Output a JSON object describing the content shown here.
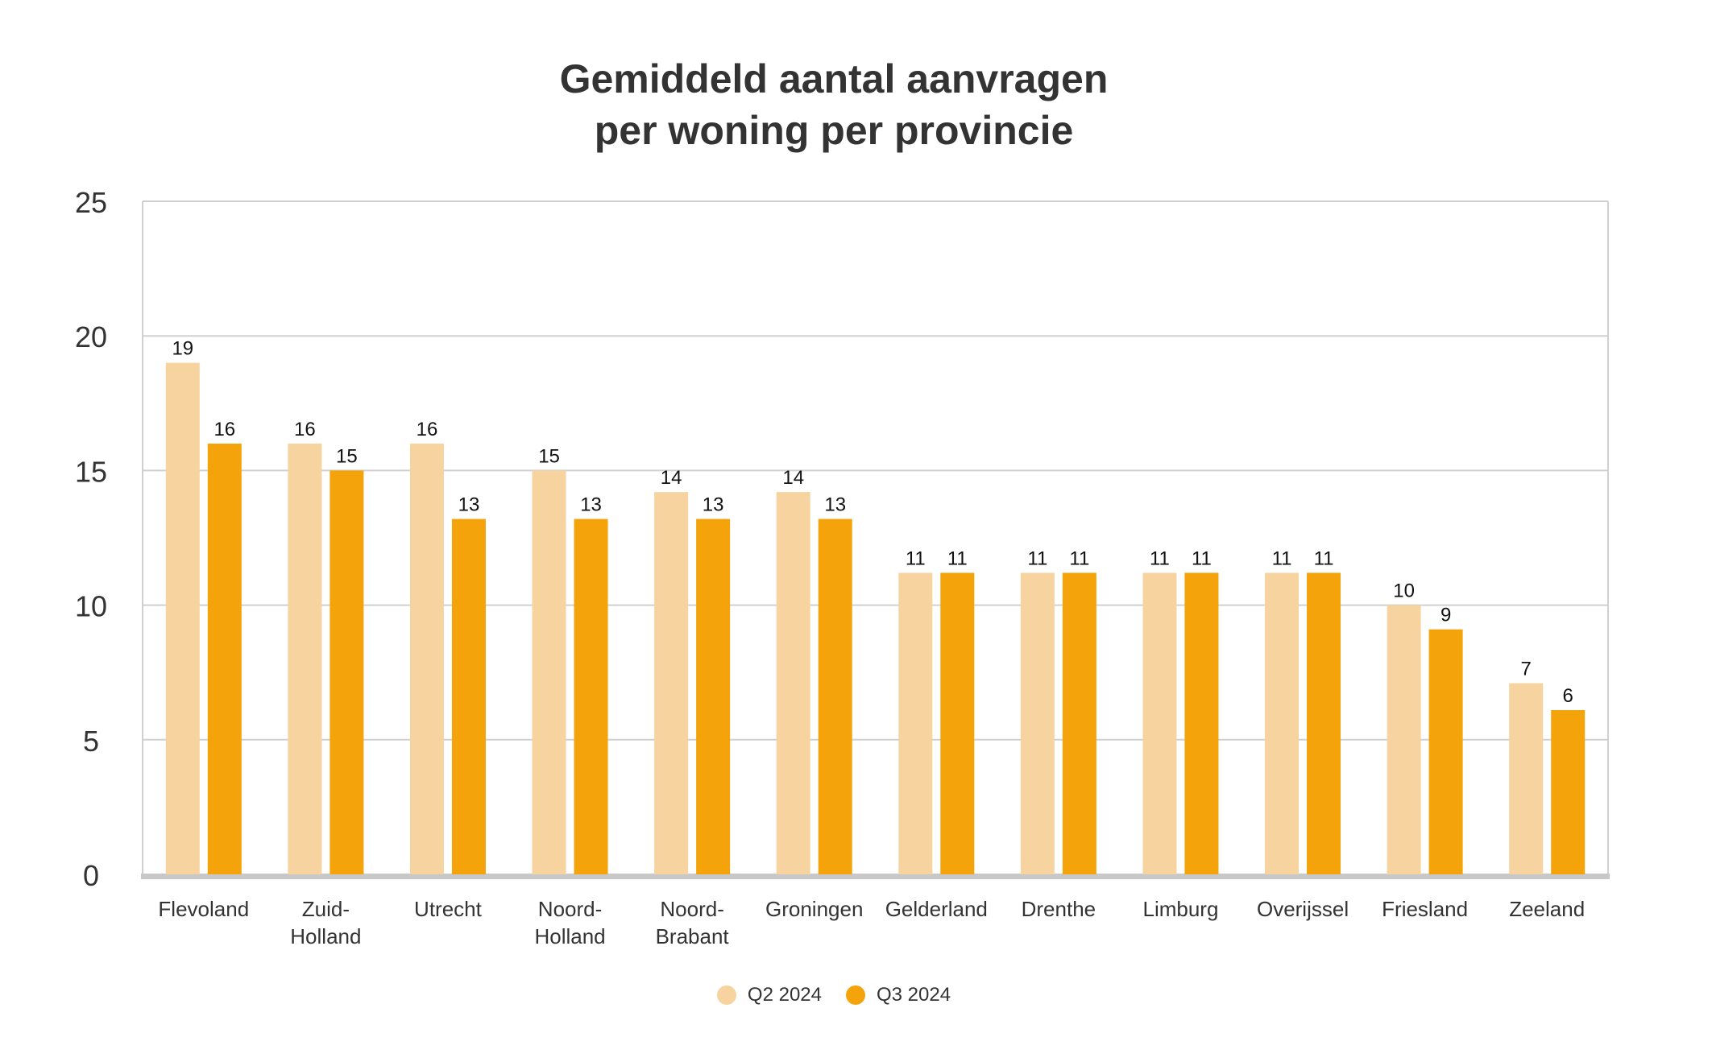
{
  "chart_data": {
    "type": "bar",
    "title": [
      "Gemiddeld aantal aanvragen",
      "per woning per provincie"
    ],
    "xlabel": "",
    "ylabel": "",
    "ylim": [
      0,
      25
    ],
    "yticks": [
      0,
      5,
      10,
      15,
      20,
      25
    ],
    "grid": true,
    "legend_position": "bottom-center",
    "categories": [
      [
        "Flevoland"
      ],
      [
        "Zuid-",
        "Holland"
      ],
      [
        "Utrecht"
      ],
      [
        "Noord-",
        "Holland"
      ],
      [
        "Noord-",
        "Brabant"
      ],
      [
        "Groningen"
      ],
      [
        "Gelderland"
      ],
      [
        "Drenthe"
      ],
      [
        "Limburg"
      ],
      [
        "Overijssel"
      ],
      [
        "Friesland"
      ],
      [
        "Zeeland"
      ]
    ],
    "series": [
      {
        "name": "Q2 2024",
        "color": "#F7D3A0",
        "values": [
          19,
          16,
          16,
          15,
          14.2,
          14.2,
          11.2,
          11.2,
          11.2,
          11.2,
          10,
          7.1
        ],
        "labels": [
          "19",
          "16",
          "16",
          "15",
          "14",
          "14",
          "11",
          "11",
          "11",
          "11",
          "10",
          "7"
        ]
      },
      {
        "name": "Q3 2024",
        "color": "#F4A30A",
        "values": [
          16,
          15,
          13.2,
          13.2,
          13.2,
          13.2,
          11.2,
          11.2,
          11.2,
          11.2,
          9.1,
          6.1
        ],
        "labels": [
          "16",
          "15",
          "13",
          "13",
          "13",
          "13",
          "11",
          "11",
          "11",
          "11",
          "9",
          "6"
        ]
      }
    ],
    "colors": {
      "text": "#333333",
      "grid": "#d0d0d0",
      "baseline": "#c8c8c8",
      "label": "#111111"
    }
  }
}
